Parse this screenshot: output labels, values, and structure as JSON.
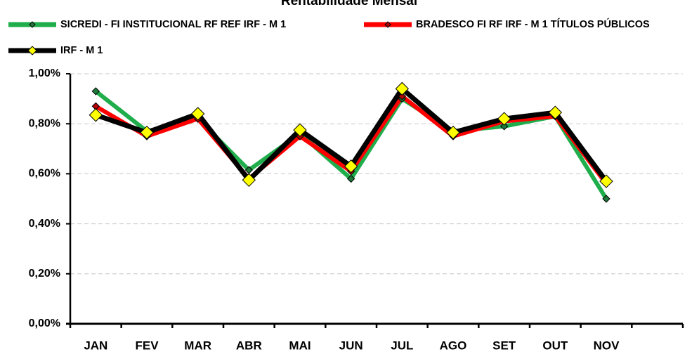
{
  "chart_data": {
    "type": "line",
    "title": "Rentabilidade Mensal",
    "categories": [
      "JAN",
      "FEV",
      "MAR",
      "ABR",
      "MAI",
      "JUN",
      "JUL",
      "AGO",
      "SET",
      "OUT",
      "NOV",
      null
    ],
    "series": [
      {
        "name": "SICREDI - FI INSTITUCIONAL RF REF IRF - M 1",
        "color": "#1fae4b",
        "marker_color": "#1f7a3a",
        "values": [
          0.93,
          0.77,
          0.82,
          0.615,
          0.76,
          0.58,
          0.9,
          0.77,
          0.79,
          0.83,
          0.5,
          null
        ]
      },
      {
        "name": "BRADESCO FI RF IRF - M 1 TÍTULOS PÚBLICOS",
        "color": "#ff0000",
        "marker_color": "#b00000",
        "values": [
          0.87,
          0.75,
          0.82,
          0.58,
          0.75,
          0.61,
          0.91,
          0.75,
          0.81,
          0.83,
          0.56,
          null
        ]
      },
      {
        "name": "IRF - M 1",
        "color": "#000000",
        "marker_color": "#ffff00",
        "values": [
          0.835,
          0.765,
          0.84,
          0.575,
          0.775,
          0.63,
          0.94,
          0.765,
          0.82,
          0.845,
          0.57,
          null
        ]
      }
    ],
    "ylim": [
      0,
      1
    ],
    "yticks": [
      {
        "value": 0,
        "label": "0,00%"
      },
      {
        "value": 0.2,
        "label": "0,20%"
      },
      {
        "value": 0.4,
        "label": "0,40%"
      },
      {
        "value": 0.6,
        "label": "0,60%"
      },
      {
        "value": 0.8,
        "label": "0,80%"
      },
      {
        "value": 1,
        "label": "1,00%"
      }
    ],
    "grid": true
  }
}
